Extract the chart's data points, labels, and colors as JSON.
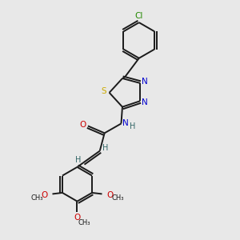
{
  "bg_color": "#e8e8e8",
  "bond_color": "#1a1a1a",
  "S_color": "#ccaa00",
  "N_color": "#0000cc",
  "O_color": "#cc0000",
  "Cl_color": "#228800",
  "H_color": "#336666",
  "figsize": [
    3.0,
    3.0
  ],
  "dpi": 100,
  "xlim": [
    0,
    10
  ],
  "ylim": [
    0,
    10
  ]
}
